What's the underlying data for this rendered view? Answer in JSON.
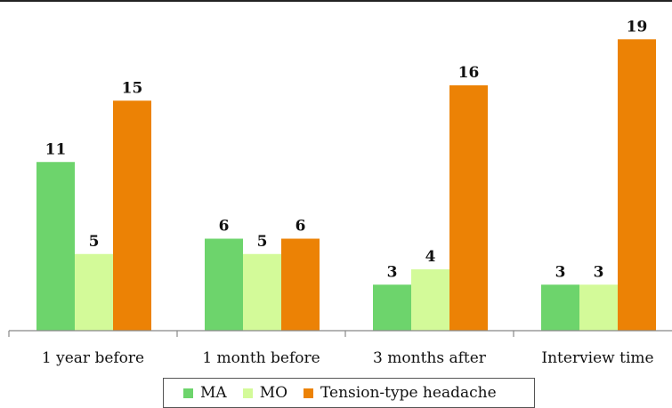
{
  "chart_data": {
    "type": "bar",
    "title": "",
    "xlabel": "",
    "ylabel": "",
    "ylim": [
      0,
      20
    ],
    "grid": false,
    "legend_position": "bottom",
    "categories": [
      "1 year before",
      "1 month before",
      "3 months after",
      "Interview time"
    ],
    "series": [
      {
        "name": "MA",
        "color": "#6dd46c",
        "values": [
          11,
          6,
          3,
          3
        ]
      },
      {
        "name": "MO",
        "color": "#d3fa99",
        "values": [
          5,
          5,
          4,
          3
        ]
      },
      {
        "name": "Tension-type headache",
        "color": "#ec8205",
        "values": [
          15,
          6,
          16,
          19
        ]
      }
    ]
  }
}
